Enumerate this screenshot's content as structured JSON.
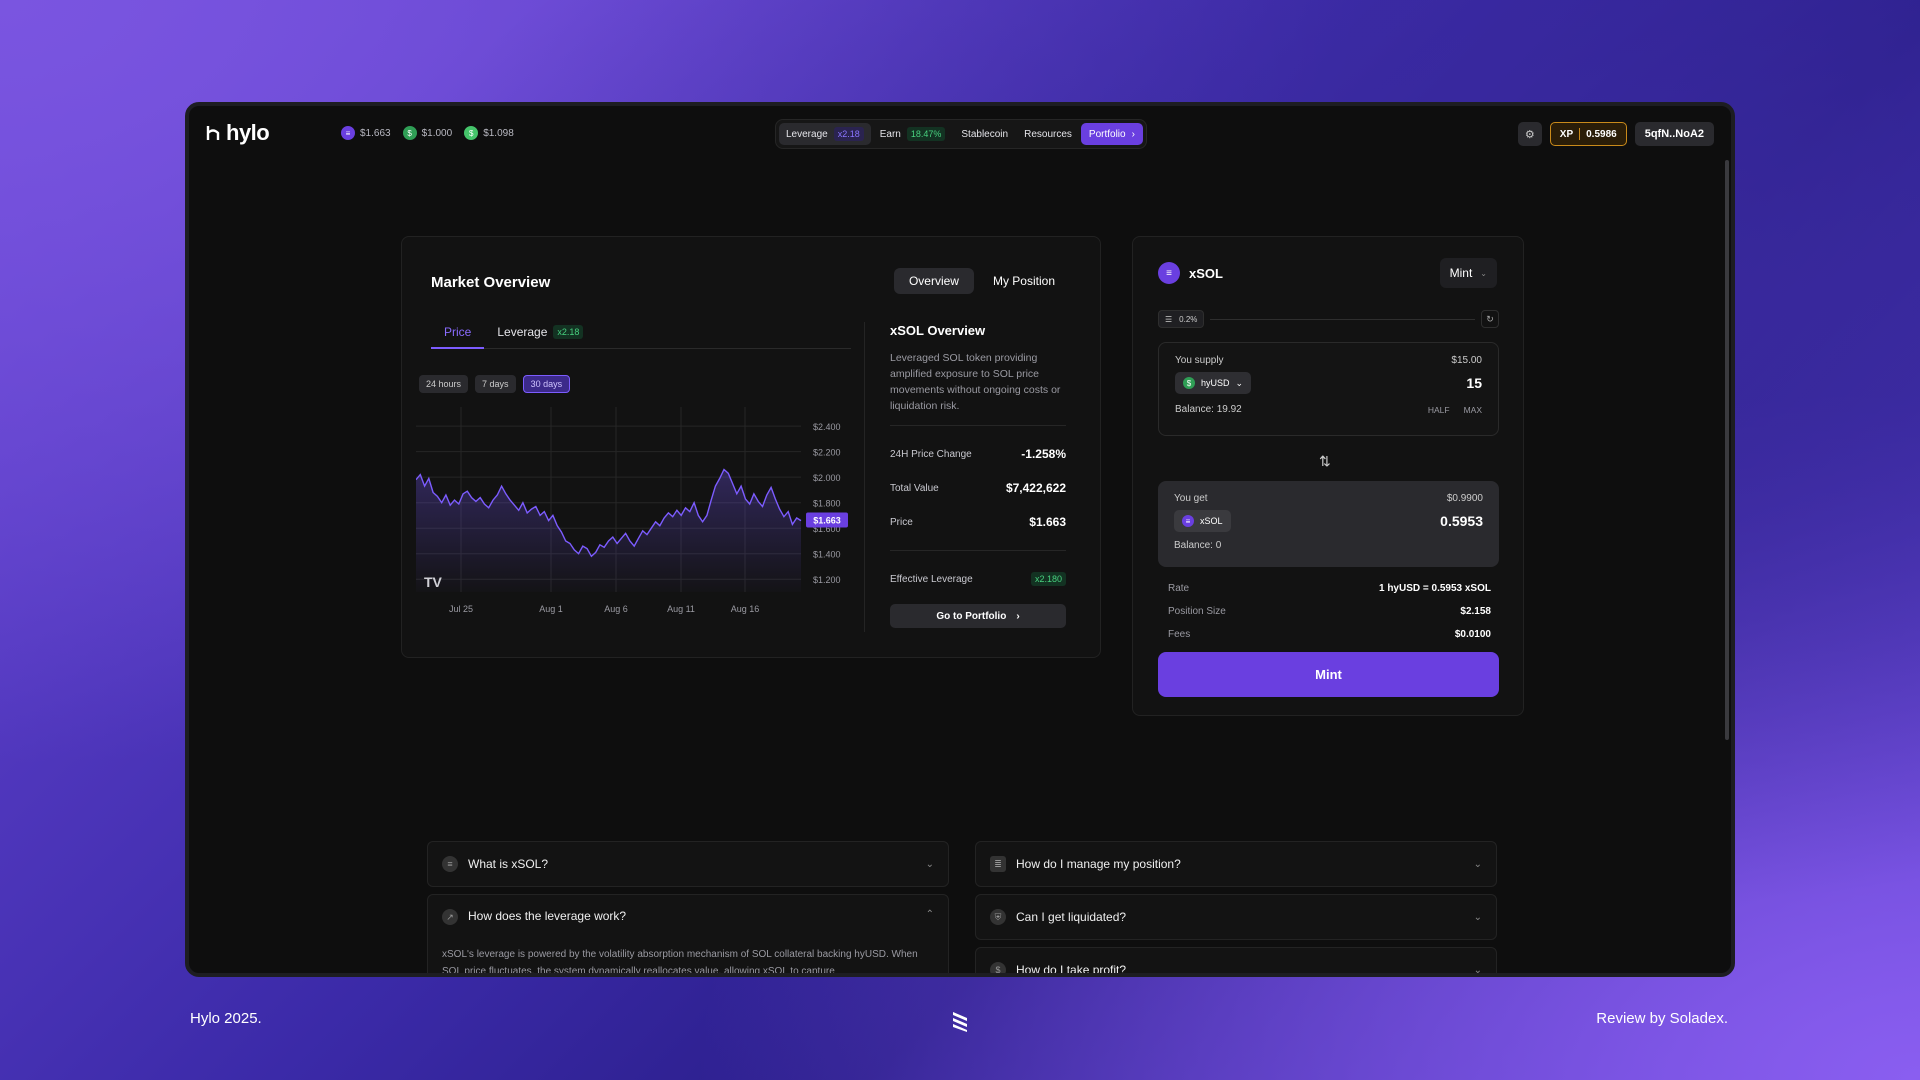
{
  "app": {
    "logo_text": "hylo",
    "prices": [
      {
        "icon": "xsol-coin-icon",
        "value": "$1.663",
        "color": "#6a3fe0"
      },
      {
        "icon": "hyusd-coin-icon",
        "value": "$1.000",
        "color": "#2f9e55"
      },
      {
        "icon": "shyusd-coin-icon",
        "value": "$1.098",
        "color": "#45c46a"
      }
    ]
  },
  "nav": {
    "leverage": "Leverage",
    "leverage_badge": "x2.18",
    "earn": "Earn",
    "earn_badge": "18.47%",
    "stablecoin": "Stablecoin",
    "resources": "Resources",
    "portfolio": "Portfolio"
  },
  "header_right": {
    "xp_label": "XP",
    "xp_value": "0.5986",
    "wallet": "5qfN..NoA2"
  },
  "market": {
    "title": "Market Overview",
    "tab_overview": "Overview",
    "tab_position": "My Position",
    "chart_tab_price": "Price",
    "chart_tab_leverage": "Leverage",
    "chart_tab_leverage_badge": "x2.18",
    "ranges": [
      "24 hours",
      "7 days",
      "30 days"
    ],
    "tv_logo": "TV",
    "current_price_tag": "$1.663"
  },
  "overview": {
    "title": "xSOL Overview",
    "description": "Leveraged SOL token providing amplified exposure to SOL price movements without ongoing costs or liquidation risk.",
    "change_label": "24H Price Change",
    "change_value": "-1.258%",
    "tv_label": "Total Value",
    "tv_value": "$7,422,622",
    "price_label": "Price",
    "price_value": "$1.663",
    "eff_label": "Effective Leverage",
    "eff_value": "x2.180",
    "goto": "Go to Portfolio"
  },
  "swap": {
    "token": "xSOL",
    "mode": "Mint",
    "slippage": "0.2%",
    "supply_label": "You supply",
    "supply_usd": "$15.00",
    "supply_token": "hyUSD",
    "supply_amount": "15",
    "supply_balance": "Balance: 19.92",
    "half": "HALF",
    "max": "MAX",
    "get_label": "You get",
    "get_usd": "$0.9900",
    "get_token": "xSOL",
    "get_amount": "0.5953",
    "get_balance": "Balance: 0",
    "rate_label": "Rate",
    "rate_value": "1 hyUSD = 0.5953 xSOL",
    "size_label": "Position Size",
    "size_value": "$2.158",
    "fees_label": "Fees",
    "fees_value": "$0.0100",
    "mint_button": "Mint"
  },
  "faq": {
    "q1": "What is xSOL?",
    "q2": "How do I manage my position?",
    "q3": "How does the leverage work?",
    "q3_body": "xSOL's leverage is powered by the volatility absorption mechanism of SOL collateral backing hyUSD. When SOL price fluctuates, the system dynamically reallocates value, allowing xSOL to capture",
    "q4": "Can I get liquidated?",
    "q5": "How do I take profit?"
  },
  "footer": {
    "left": "Hylo 2025.",
    "right": "Review by Soladex."
  },
  "chart_data": {
    "type": "line",
    "title": "",
    "x_ticks": [
      "Jul 25",
      "Aug 1",
      "Aug 6",
      "Aug 11",
      "Aug 16"
    ],
    "y_ticks": [
      "$2.400",
      "$2.200",
      "$2.000",
      "$1.800",
      "$1.600",
      "$1.400",
      "$1.200"
    ],
    "ylim": [
      1.1,
      2.55
    ],
    "series": [
      {
        "values": [
          1.98,
          2.02,
          1.93,
          1.99,
          1.88,
          1.85,
          1.8,
          1.86,
          1.78,
          1.82,
          1.79,
          1.87,
          1.89,
          1.84,
          1.81,
          1.84,
          1.79,
          1.76,
          1.82,
          1.86,
          1.93,
          1.87,
          1.82,
          1.78,
          1.74,
          1.8,
          1.72,
          1.75,
          1.77,
          1.7,
          1.73,
          1.66,
          1.7,
          1.62,
          1.57,
          1.5,
          1.48,
          1.43,
          1.4,
          1.46,
          1.44,
          1.38,
          1.41,
          1.47,
          1.45,
          1.5,
          1.53,
          1.48,
          1.52,
          1.56,
          1.5,
          1.46,
          1.52,
          1.58,
          1.55,
          1.6,
          1.65,
          1.62,
          1.68,
          1.72,
          1.69,
          1.74,
          1.7,
          1.76,
          1.73,
          1.8,
          1.7,
          1.65,
          1.7,
          1.82,
          1.93,
          1.99,
          2.06,
          2.03,
          1.95,
          1.87,
          1.93,
          1.83,
          1.79,
          1.87,
          1.81,
          1.77,
          1.86,
          1.92,
          1.83,
          1.75,
          1.69,
          1.73,
          1.63,
          1.68,
          1.66
        ]
      }
    ],
    "grid": true
  }
}
